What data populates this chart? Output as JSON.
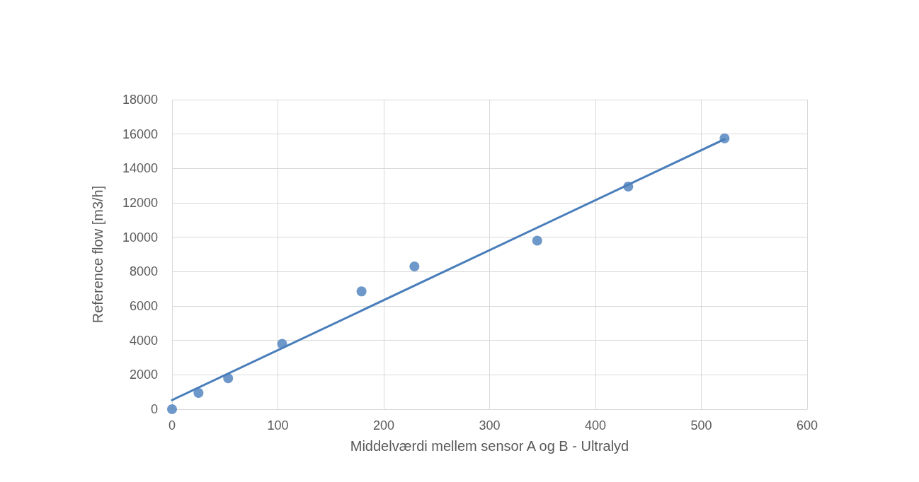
{
  "chart_data": {
    "type": "scatter",
    "xlabel": "Middelværdi mellem sensor A og B - Ultralyd",
    "ylabel": "Reference flow [m3/h]",
    "xlim": [
      0,
      600
    ],
    "xticks": [
      0,
      100,
      200,
      300,
      400,
      500,
      600
    ],
    "ylim": [
      0,
      18000
    ],
    "yticks": [
      0,
      2000,
      4000,
      6000,
      8000,
      10000,
      12000,
      14000,
      16000,
      18000
    ],
    "grid": true,
    "marker": "circle",
    "series": [
      {
        "type": "scatter",
        "color": "#4a7ebb",
        "x": [
          0,
          25,
          53,
          104,
          179,
          229,
          345,
          431,
          522
        ],
        "values": [
          0,
          950,
          1800,
          3800,
          6850,
          8300,
          9800,
          12950,
          15750
        ]
      },
      {
        "type": "line",
        "color": "#4a7ebb",
        "line_style": "solid",
        "marker": "none",
        "x": [
          0,
          522
        ],
        "values": [
          530,
          15700
        ]
      }
    ]
  }
}
